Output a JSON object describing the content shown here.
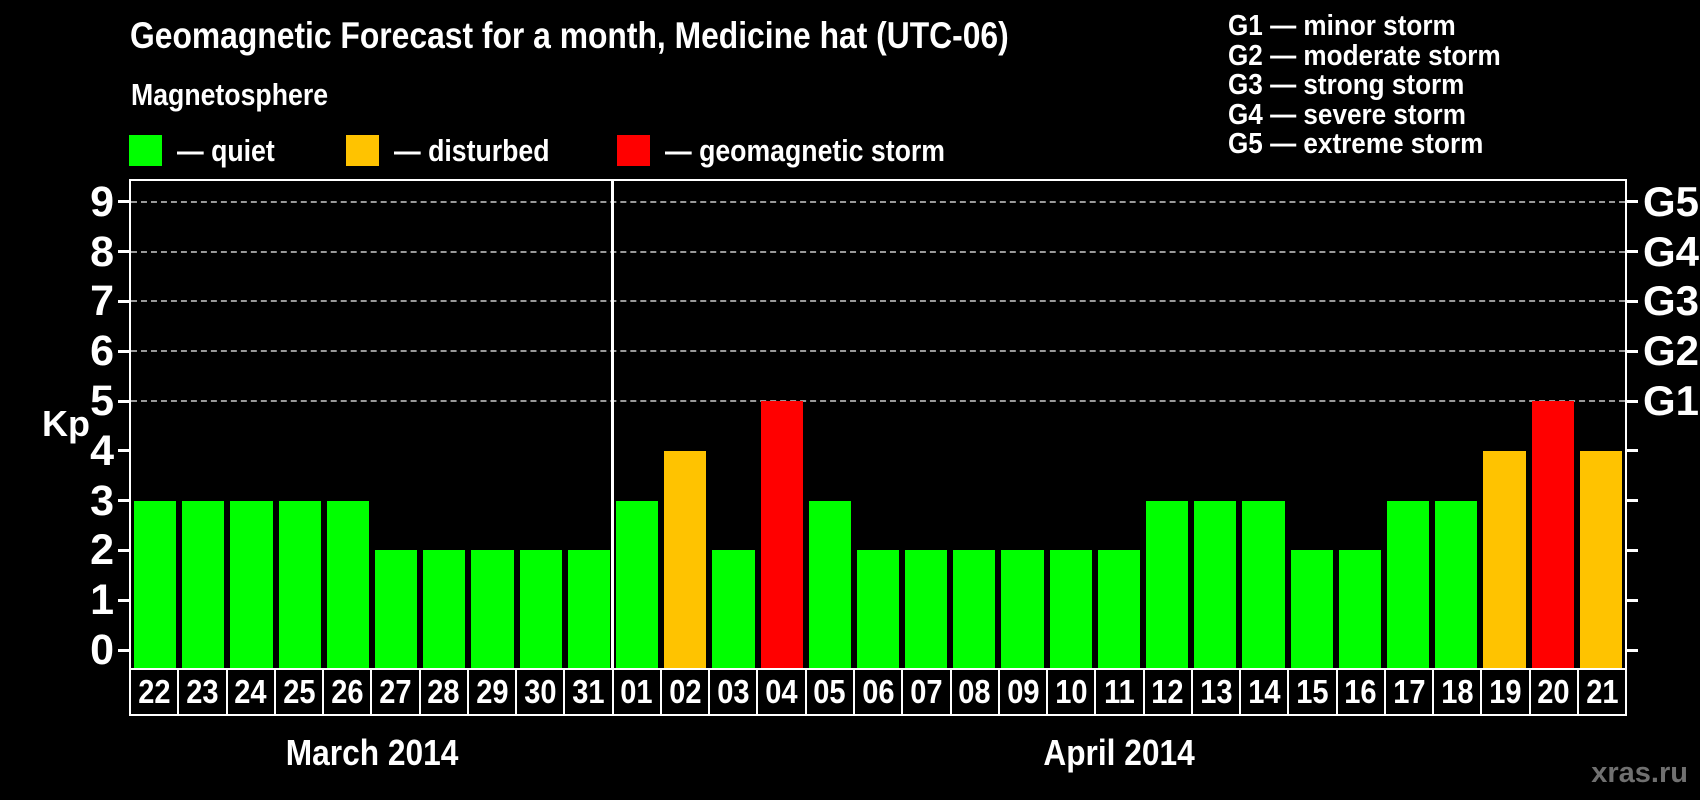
{
  "title": "Geomagnetic Forecast for a month, Medicine hat (UTC-06)",
  "subtitle": "Magnetosphere",
  "legend": [
    {
      "name": "quiet",
      "label": "— quiet",
      "color": "#00ff00"
    },
    {
      "name": "disturbed",
      "label": "— disturbed",
      "color": "#ffc300"
    },
    {
      "name": "storm",
      "label": "— geomagnetic storm",
      "color": "#ff0000"
    }
  ],
  "g_scale_legend": [
    "G1 — minor storm",
    "G2 — moderate storm",
    "G3 — strong storm",
    "G4 — severe storm",
    "G5 — extreme storm"
  ],
  "y_axis": {
    "label": "Kp",
    "ticks": [
      0,
      1,
      2,
      3,
      4,
      5,
      6,
      7,
      8,
      9
    ]
  },
  "right_axis": [
    {
      "label": "G1",
      "kp": 5
    },
    {
      "label": "G2",
      "kp": 6
    },
    {
      "label": "G3",
      "kp": 7
    },
    {
      "label": "G4",
      "kp": 8
    },
    {
      "label": "G5",
      "kp": 9
    }
  ],
  "watermark": "xras.ru",
  "chart_data": {
    "type": "bar",
    "title": "Geomagnetic Forecast for a month, Medicine hat (UTC-06)",
    "xlabel": "",
    "ylabel": "Kp",
    "ylim": [
      0,
      9.4
    ],
    "grid": "horizontal dashed lines at Kp 5,6,7,8,9",
    "legend_position": "top-left",
    "bar_colors_by_status": {
      "quiet": "#00ff00",
      "disturbed": "#ffc300",
      "storm": "#ff0000"
    },
    "months": [
      {
        "label": "March 2014",
        "days": [
          "22",
          "23",
          "24",
          "25",
          "26",
          "27",
          "28",
          "29",
          "30",
          "31"
        ],
        "values": [
          3,
          3,
          3,
          3,
          3,
          2,
          2,
          2,
          2,
          2
        ],
        "status": [
          "quiet",
          "quiet",
          "quiet",
          "quiet",
          "quiet",
          "quiet",
          "quiet",
          "quiet",
          "quiet",
          "quiet"
        ]
      },
      {
        "label": "April 2014",
        "days": [
          "01",
          "02",
          "03",
          "04",
          "05",
          "06",
          "07",
          "08",
          "09",
          "10",
          "11",
          "12",
          "13",
          "14",
          "15",
          "16",
          "17",
          "18",
          "19",
          "20",
          "21"
        ],
        "values": [
          3,
          4,
          2,
          5,
          3,
          2,
          2,
          2,
          2,
          2,
          2,
          3,
          3,
          3,
          2,
          2,
          3,
          3,
          4,
          5,
          4
        ],
        "status": [
          "quiet",
          "disturbed",
          "quiet",
          "storm",
          "quiet",
          "quiet",
          "quiet",
          "quiet",
          "quiet",
          "quiet",
          "quiet",
          "quiet",
          "quiet",
          "quiet",
          "quiet",
          "quiet",
          "quiet",
          "quiet",
          "disturbed",
          "storm",
          "disturbed"
        ]
      }
    ]
  }
}
